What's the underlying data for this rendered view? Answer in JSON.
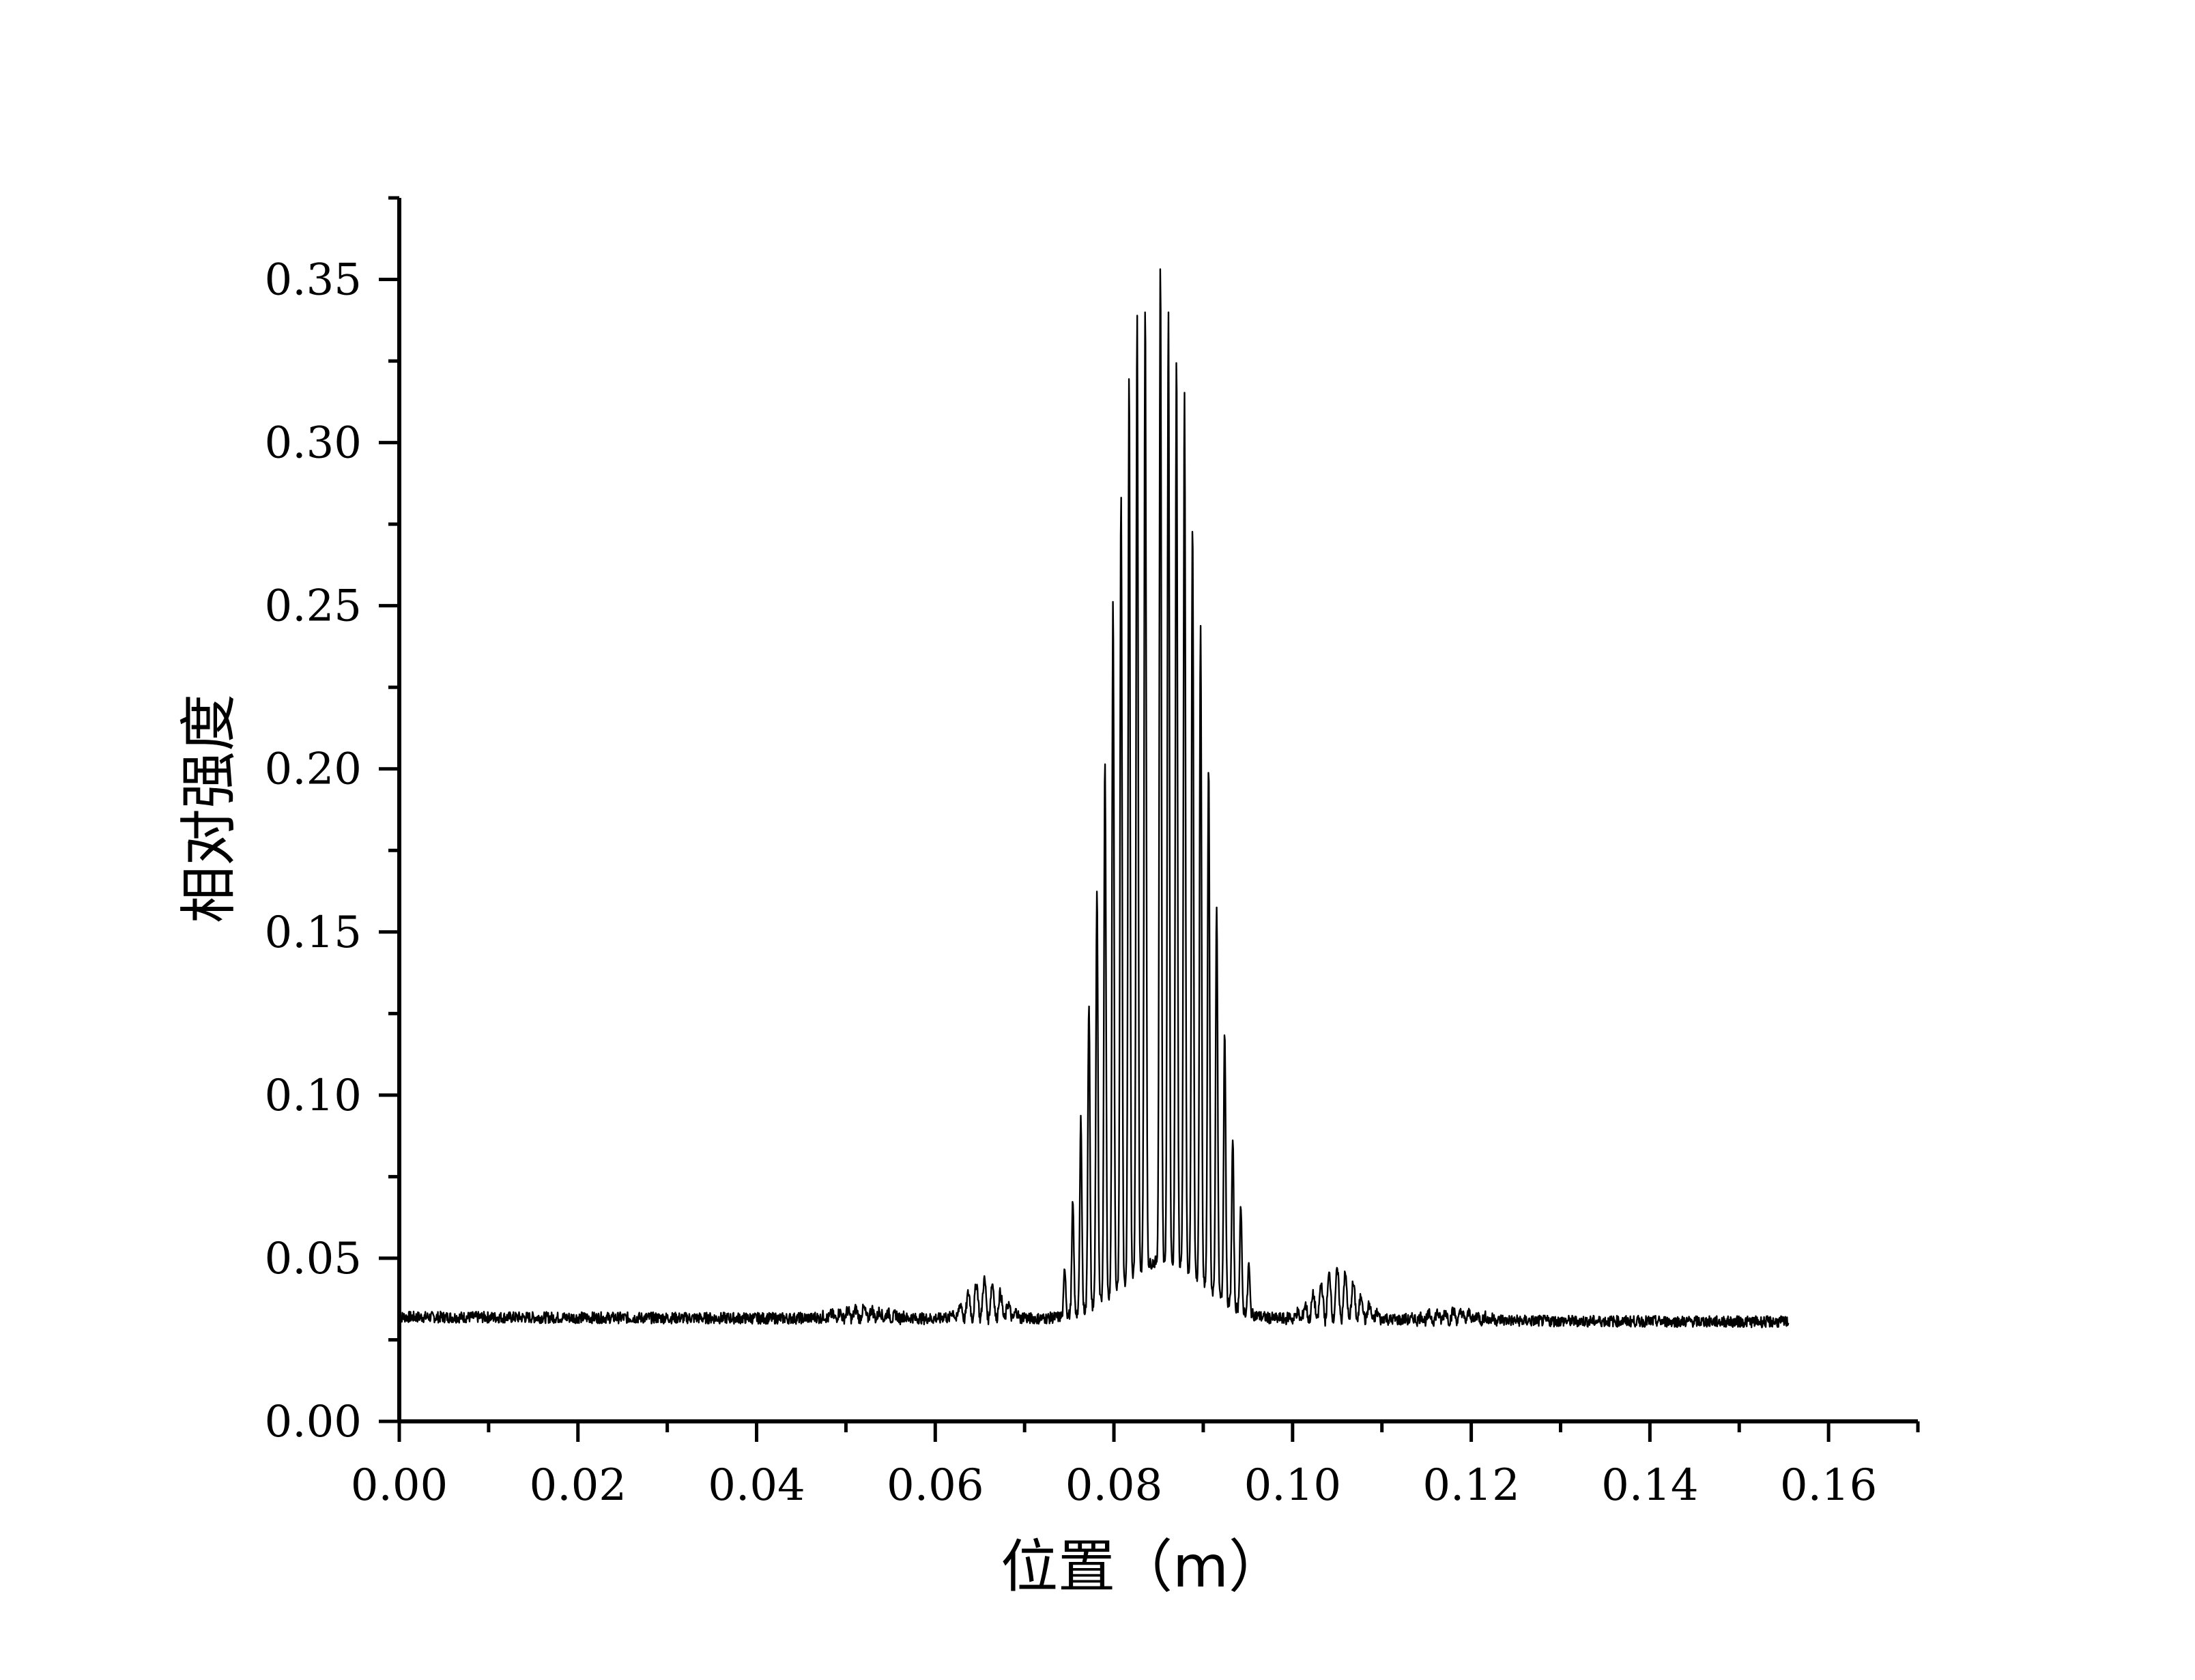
{
  "chart_data": {
    "type": "line",
    "title": "",
    "xlabel": "位置（m）",
    "ylabel": "相对强度",
    "xlim": [
      0.0,
      0.17
    ],
    "ylim": [
      0.0,
      0.375
    ],
    "x_ticks": [
      0.0,
      0.02,
      0.04,
      0.06,
      0.08,
      0.1,
      0.12,
      0.14,
      0.16
    ],
    "x_tick_labels": [
      "0.00",
      "0.02",
      "0.04",
      "0.06",
      "0.08",
      "0.10",
      "0.12",
      "0.14",
      "0.16"
    ],
    "y_ticks": [
      0.0,
      0.05,
      0.1,
      0.15,
      0.2,
      0.25,
      0.3,
      0.35
    ],
    "y_tick_labels": [
      "0.00",
      "0.05",
      "0.10",
      "0.15",
      "0.20",
      "0.25",
      "0.30",
      "0.35"
    ],
    "grid": false,
    "legend": "none",
    "series": [
      {
        "color": "#000000",
        "x_range": [
          0.0,
          0.1555
        ],
        "baseline": 0.032,
        "peaks": [
          {
            "x": 0.0745,
            "y": 0.047
          },
          {
            "x": 0.0754,
            "y": 0.066
          },
          {
            "x": 0.0763,
            "y": 0.091
          },
          {
            "x": 0.0772,
            "y": 0.126
          },
          {
            "x": 0.0781,
            "y": 0.159
          },
          {
            "x": 0.079,
            "y": 0.198
          },
          {
            "x": 0.0799,
            "y": 0.244
          },
          {
            "x": 0.0808,
            "y": 0.276
          },
          {
            "x": 0.0817,
            "y": 0.308
          },
          {
            "x": 0.0826,
            "y": 0.325
          },
          {
            "x": 0.0835,
            "y": 0.328
          },
          {
            "x": 0.0852,
            "y": 0.338
          },
          {
            "x": 0.0861,
            "y": 0.324
          },
          {
            "x": 0.087,
            "y": 0.311
          },
          {
            "x": 0.0879,
            "y": 0.3
          },
          {
            "x": 0.0888,
            "y": 0.264
          },
          {
            "x": 0.0897,
            "y": 0.232
          },
          {
            "x": 0.0906,
            "y": 0.193
          },
          {
            "x": 0.0915,
            "y": 0.151
          },
          {
            "x": 0.0924,
            "y": 0.115
          },
          {
            "x": 0.0933,
            "y": 0.083
          },
          {
            "x": 0.0942,
            "y": 0.064
          },
          {
            "x": 0.0951,
            "y": 0.047
          }
        ]
      }
    ]
  }
}
